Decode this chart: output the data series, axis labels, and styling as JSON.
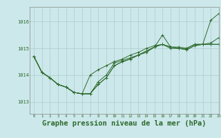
{
  "background_color": "#cce8ea",
  "grid_color": "#aacccc",
  "line_color": "#2d6a2d",
  "marker_color": "#2d6a2d",
  "xlabel": "Graphe pression niveau de la mer (hPa)",
  "xlabel_fontsize": 7.5,
  "ylabel_ticks": [
    1013,
    1014,
    1015,
    1016
  ],
  "xlim": [
    -0.5,
    23
  ],
  "ylim": [
    1012.55,
    1016.55
  ],
  "x": [
    0,
    1,
    2,
    3,
    4,
    5,
    6,
    7,
    8,
    9,
    10,
    11,
    12,
    13,
    14,
    15,
    16,
    17,
    18,
    19,
    20,
    21,
    22,
    23
  ],
  "series": [
    [
      1014.7,
      1014.1,
      1013.9,
      1013.65,
      1013.55,
      1013.35,
      1013.3,
      1013.3,
      1013.75,
      1014.0,
      1014.45,
      1014.55,
      1014.65,
      1014.75,
      1014.85,
      1015.05,
      1015.15,
      1015.0,
      1015.0,
      1014.95,
      1015.1,
      1015.15,
      1016.05,
      1016.3
    ],
    [
      1014.7,
      1014.1,
      1013.9,
      1013.65,
      1013.55,
      1013.35,
      1013.3,
      1013.3,
      1013.65,
      1013.9,
      1014.35,
      1014.5,
      1014.6,
      1014.75,
      1014.9,
      1015.05,
      1015.15,
      1015.05,
      1015.0,
      1014.95,
      1015.1,
      1015.15,
      1015.15,
      1015.15
    ],
    [
      1014.7,
      1014.1,
      1013.9,
      1013.65,
      1013.55,
      1013.35,
      1013.3,
      1014.0,
      1014.2,
      1014.35,
      1014.5,
      1014.6,
      1014.75,
      1014.85,
      1015.0,
      1015.1,
      1015.15,
      1015.05,
      1015.0,
      1015.0,
      1015.15,
      1015.15,
      1015.2,
      1015.4
    ],
    [
      1014.7,
      1014.1,
      1013.9,
      1013.65,
      1013.55,
      1013.35,
      1013.3,
      1013.3,
      1013.65,
      1013.9,
      1014.35,
      1014.5,
      1014.6,
      1014.75,
      1014.9,
      1015.05,
      1015.5,
      1015.05,
      1015.05,
      1015.0,
      1015.15,
      1015.15,
      1015.15,
      1015.15
    ]
  ]
}
